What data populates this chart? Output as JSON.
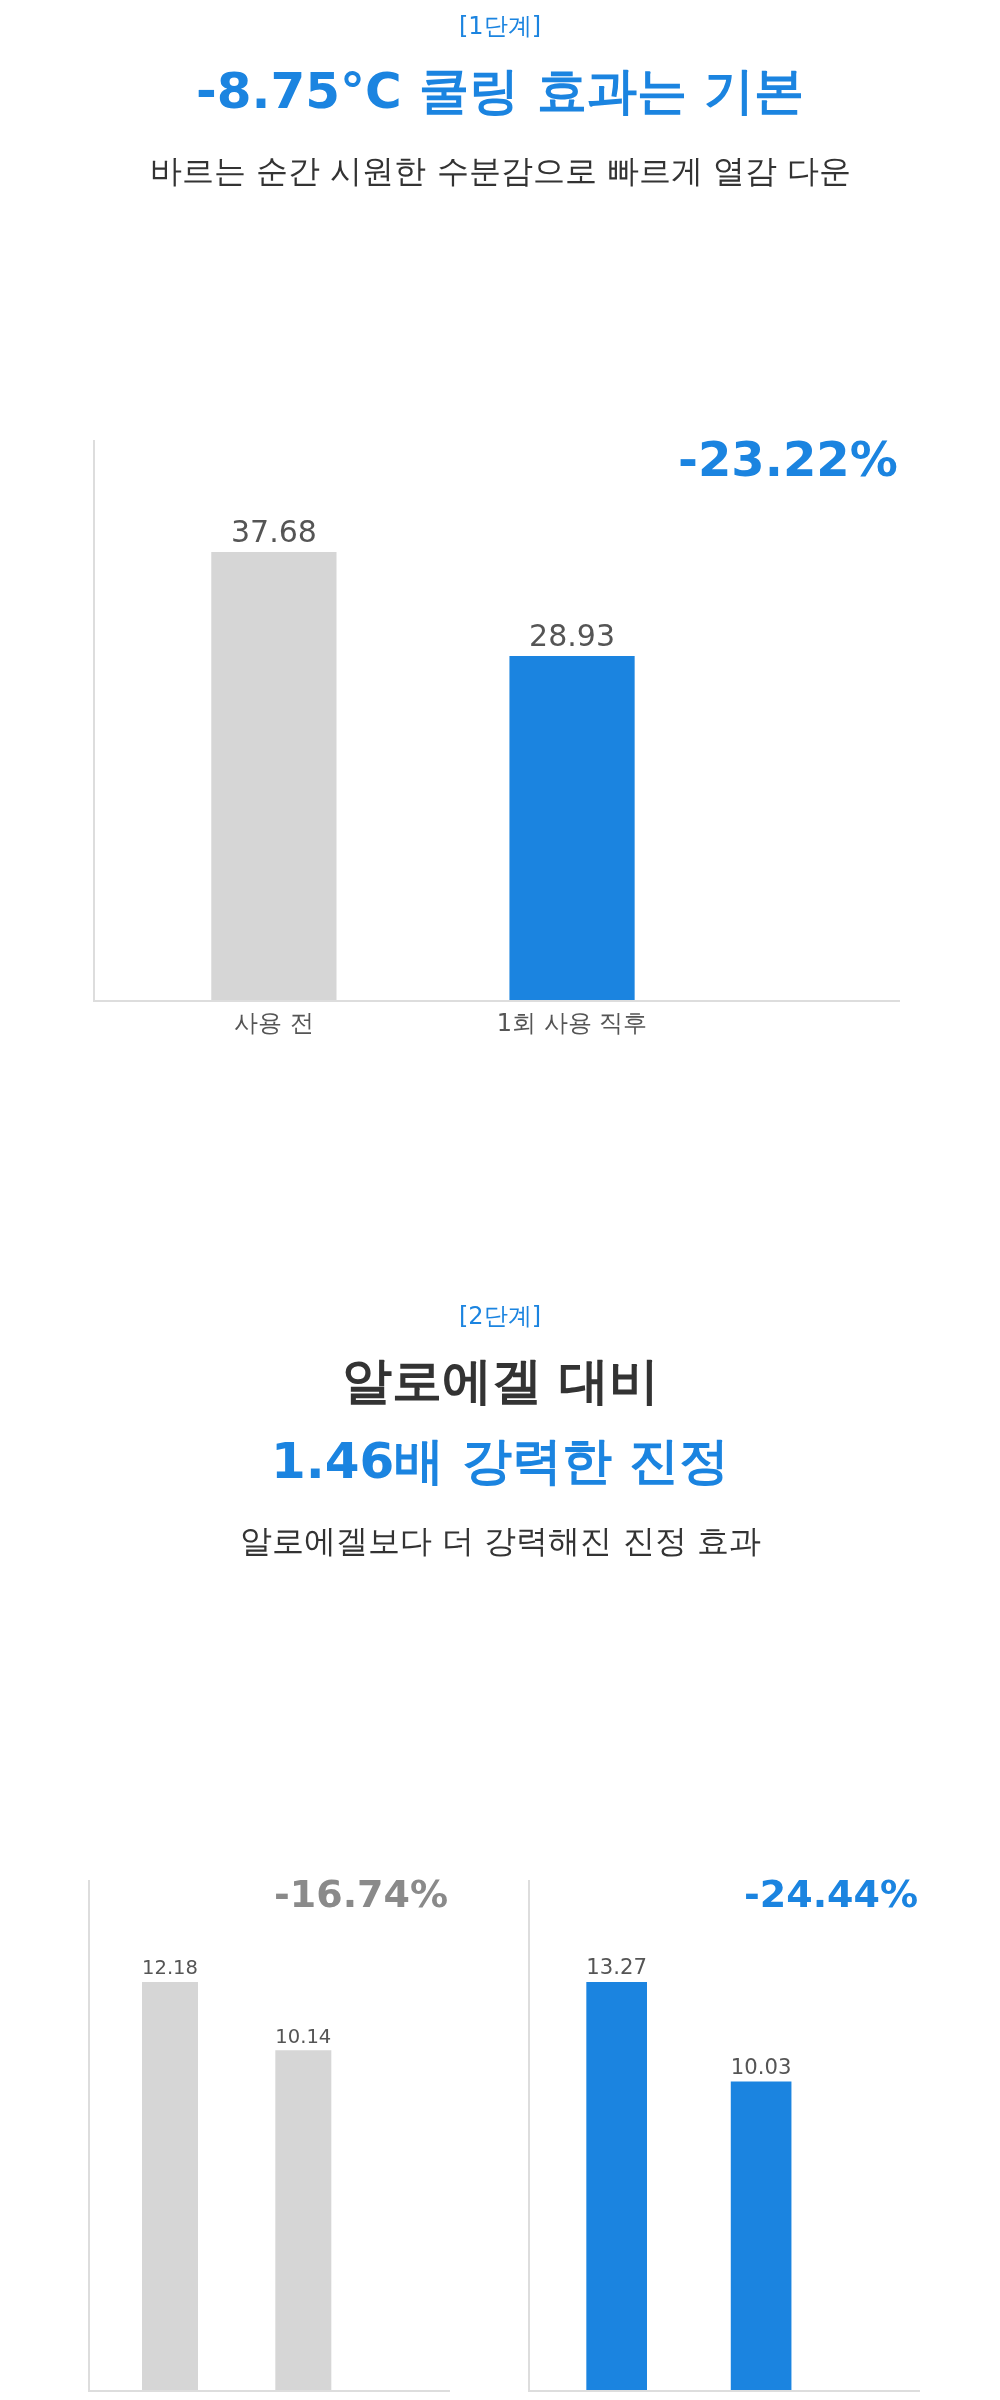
{
  "chart_data": [
    {
      "type": "bar",
      "title": "-8.75°C 쿨링 효과는 기본",
      "subtitle": "바르는 순간 시원한 수분감으로 빠르게 열감 다운",
      "annotations": [
        "[1단계]",
        "-23.22%"
      ],
      "categories": [
        "사용 전",
        "1회 사용 직후"
      ],
      "values": [
        37.68,
        28.93
      ],
      "colors": [
        "#d6d6d6",
        "#1b84e0"
      ],
      "data_labels": true
    },
    {
      "type": "bar",
      "title": "알로에겔 대비\n1.46배 강력한 진정",
      "subtitle": "알로에겔보다 더 강력해진 진정 효과",
      "annotations": [
        "[2단계]",
        "-16.74%"
      ],
      "categories": [
        null,
        null
      ],
      "values": [
        12.18,
        10.14
      ],
      "colors": [
        "#d6d6d6",
        "#d6d6d6"
      ],
      "data_labels": true
    },
    {
      "type": "bar",
      "annotations": [
        "-24.44%"
      ],
      "categories": [
        null,
        null
      ],
      "values": [
        13.27,
        10.03
      ],
      "colors": [
        "#1b84e0",
        "#1b84e0"
      ],
      "data_labels": true
    }
  ]
}
